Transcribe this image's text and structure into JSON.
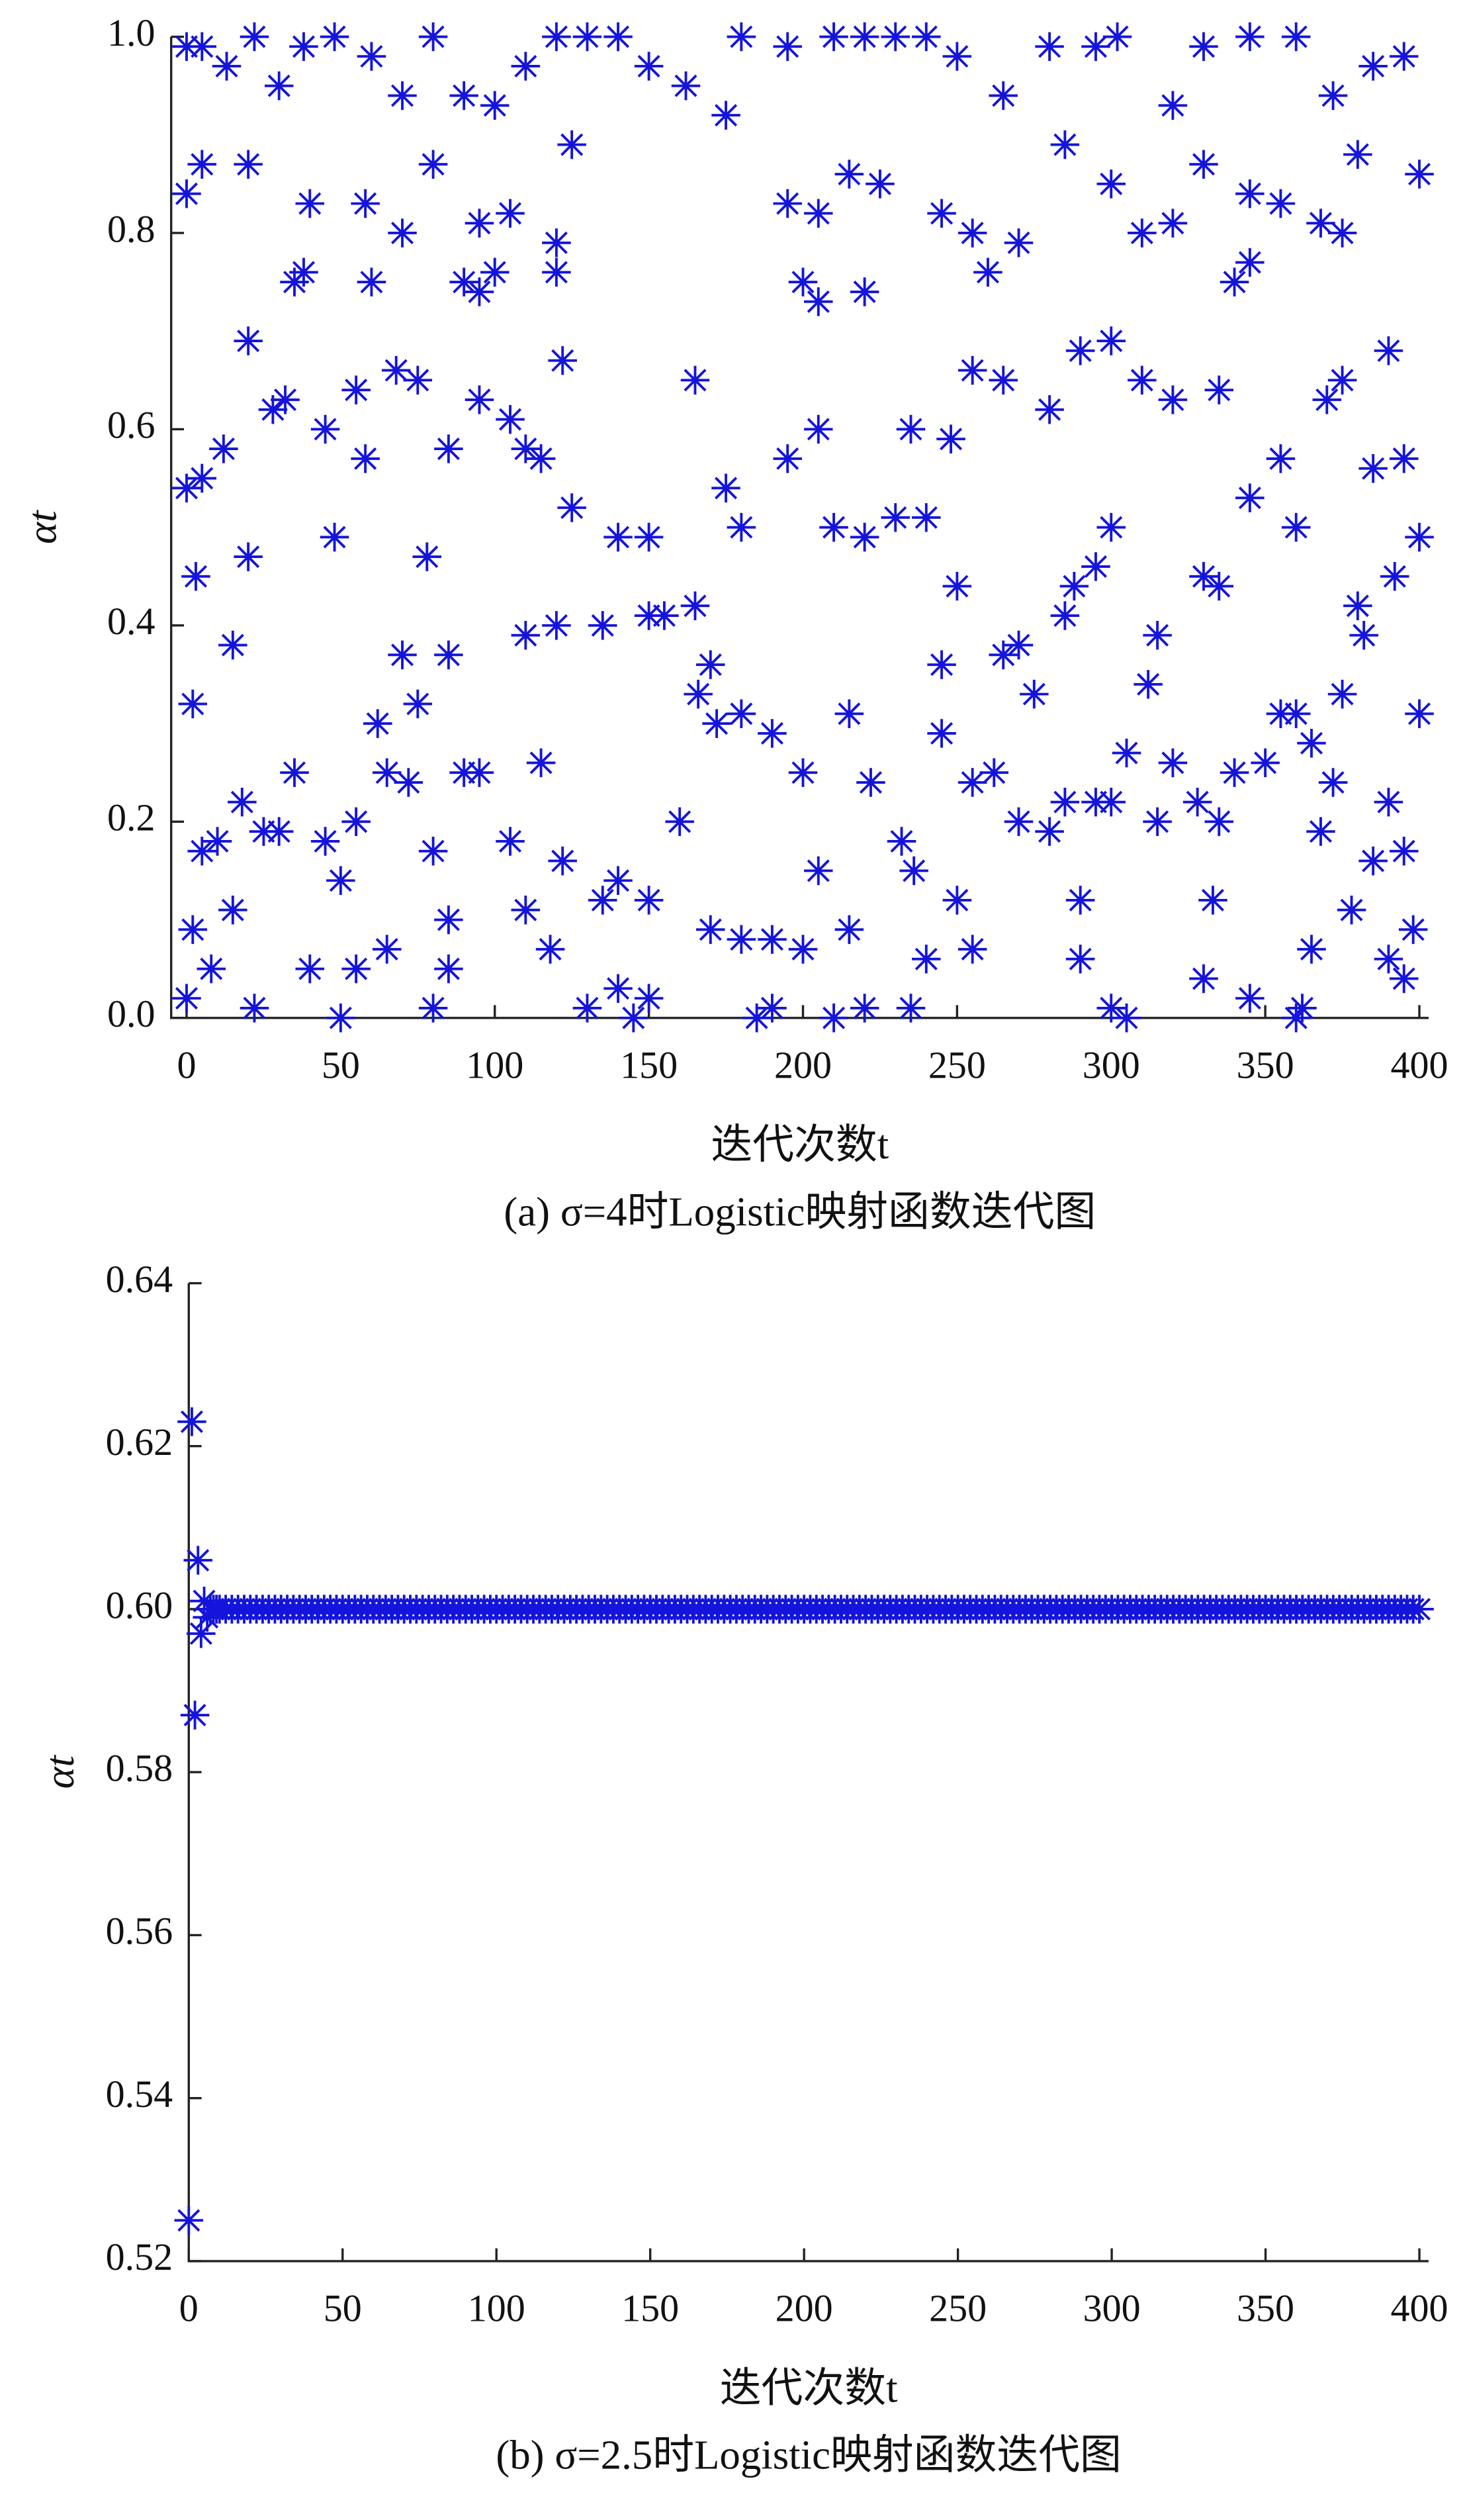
{
  "chart_data": [
    {
      "type": "scatter",
      "title": "(a) σ=4时Logistic映射函数迭代图",
      "x_label": "迭代次数t",
      "y_label": "αt",
      "color": "#1414dc",
      "marker": "asterisk",
      "xlim": [
        -5,
        403
      ],
      "xticks": [
        0,
        50,
        100,
        150,
        200,
        250,
        300,
        350,
        400
      ],
      "ylim": [
        0,
        1
      ],
      "yticks": [
        {
          "value": 0,
          "label": "0.0"
        },
        0.2,
        0.4,
        0.6,
        0.8,
        {
          "value": 1,
          "label": "1.0"
        }
      ],
      "x": [
        0,
        5,
        13,
        22,
        30,
        38,
        48,
        60,
        70,
        80,
        90,
        100,
        110,
        120,
        130,
        140,
        150,
        162,
        175,
        180,
        195,
        210,
        220,
        230,
        240,
        250,
        265,
        280,
        295,
        302,
        320,
        330,
        345,
        360,
        372,
        385,
        395,
        0,
        8,
        22,
        40,
        50,
        55,
        65,
        80,
        85,
        130,
        140,
        145,
        150,
        185,
        190,
        210,
        220,
        235,
        255,
        290,
        300,
        305,
        330,
        345,
        360,
        362,
        390,
        395,
        35,
        38,
        60,
        90,
        95,
        100,
        120,
        200,
        205,
        220,
        260,
        340,
        345,
        0,
        5,
        20,
        40,
        58,
        70,
        80,
        95,
        105,
        120,
        125,
        165,
        195,
        205,
        215,
        225,
        245,
        255,
        270,
        285,
        300,
        310,
        320,
        330,
        345,
        355,
        368,
        375,
        380,
        400,
        0,
        5,
        12,
        20,
        28,
        32,
        45,
        55,
        58,
        68,
        75,
        85,
        95,
        105,
        110,
        115,
        122,
        125,
        140,
        150,
        175,
        180,
        195,
        205,
        210,
        220,
        230,
        235,
        240,
        248,
        255,
        265,
        280,
        290,
        300,
        310,
        320,
        335,
        345,
        355,
        360,
        370,
        375,
        385,
        390,
        395,
        400,
        3,
        2,
        15,
        20,
        48,
        70,
        78,
        85,
        75,
        110,
        120,
        135,
        150,
        155,
        165,
        170,
        172,
        166,
        180,
        190,
        200,
        215,
        245,
        250,
        265,
        270,
        275,
        285,
        288,
        295,
        300,
        315,
        312,
        330,
        335,
        365,
        360,
        375,
        380,
        382,
        400,
        392,
        2,
        5,
        10,
        18,
        15,
        25,
        30,
        35,
        45,
        50,
        55,
        62,
        65,
        72,
        80,
        85,
        90,
        95,
        105,
        110,
        115,
        118,
        122,
        135,
        140,
        150,
        160,
        170,
        180,
        190,
        200,
        205,
        215,
        222,
        232,
        236,
        240,
        245,
        250,
        255,
        262,
        270,
        280,
        285,
        290,
        295,
        300,
        305,
        315,
        320,
        328,
        333,
        335,
        340,
        350,
        355,
        365,
        368,
        372,
        378,
        385,
        390,
        395,
        398
      ],
      "values": [
        0.99,
        0.99,
        0.97,
        1.0,
        0.95,
        0.99,
        1.0,
        0.98,
        0.94,
        1.0,
        0.94,
        0.93,
        0.97,
        1.0,
        1.0,
        1.0,
        0.97,
        0.95,
        0.92,
        1.0,
        0.99,
        1.0,
        1.0,
        1.0,
        1.0,
        0.98,
        0.94,
        0.99,
        0.99,
        1.0,
        0.93,
        0.99,
        1.0,
        1.0,
        0.94,
        0.97,
        0.98,
        0.02,
        0.05,
        0.01,
        0.05,
        0.0,
        0.05,
        0.07,
        0.01,
        0.05,
        0.01,
        0.03,
        0.0,
        0.02,
        0.0,
        0.01,
        0.0,
        0.01,
        0.01,
        0.07,
        0.06,
        0.01,
        0.0,
        0.04,
        0.02,
        0.0,
        0.01,
        0.06,
        0.04,
        0.75,
        0.76,
        0.75,
        0.75,
        0.74,
        0.76,
        0.76,
        0.75,
        0.73,
        0.74,
        0.76,
        0.75,
        0.77,
        0.84,
        0.87,
        0.87,
        0.83,
        0.83,
        0.8,
        0.87,
        0.81,
        0.82,
        0.79,
        0.89,
        0.65,
        0.83,
        0.82,
        0.86,
        0.85,
        0.82,
        0.8,
        0.79,
        0.89,
        0.85,
        0.8,
        0.81,
        0.87,
        0.84,
        0.83,
        0.81,
        0.8,
        0.88,
        0.86,
        0.54,
        0.55,
        0.58,
        0.69,
        0.62,
        0.63,
        0.6,
        0.64,
        0.57,
        0.66,
        0.65,
        0.58,
        0.63,
        0.61,
        0.58,
        0.57,
        0.67,
        0.52,
        0.49,
        0.49,
        0.54,
        0.5,
        0.57,
        0.6,
        0.5,
        0.49,
        0.51,
        0.6,
        0.51,
        0.59,
        0.66,
        0.65,
        0.62,
        0.68,
        0.69,
        0.65,
        0.63,
        0.64,
        0.53,
        0.57,
        0.5,
        0.63,
        0.65,
        0.56,
        0.68,
        0.57,
        0.49,
        0.45,
        0.32,
        0.38,
        0.47,
        0.49,
        0.37,
        0.47,
        0.37,
        0.32,
        0.39,
        0.4,
        0.4,
        0.41,
        0.41,
        0.42,
        0.36,
        0.3,
        0.33,
        0.31,
        0.29,
        0.25,
        0.31,
        0.36,
        0.44,
        0.37,
        0.38,
        0.33,
        0.41,
        0.44,
        0.46,
        0.5,
        0.39,
        0.34,
        0.45,
        0.44,
        0.28,
        0.31,
        0.33,
        0.42,
        0.39,
        0.31,
        0.45,
        0.09,
        0.17,
        0.18,
        0.22,
        0.11,
        0.19,
        0.19,
        0.25,
        0.18,
        0.14,
        0.2,
        0.3,
        0.25,
        0.24,
        0.17,
        0.1,
        0.25,
        0.25,
        0.18,
        0.11,
        0.26,
        0.07,
        0.16,
        0.12,
        0.14,
        0.12,
        0.2,
        0.09,
        0.08,
        0.08,
        0.07,
        0.15,
        0.09,
        0.24,
        0.18,
        0.15,
        0.06,
        0.29,
        0.12,
        0.24,
        0.25,
        0.2,
        0.19,
        0.22,
        0.12,
        0.22,
        0.22,
        0.27,
        0.2,
        0.26,
        0.22,
        0.12,
        0.2,
        0.25,
        0.26,
        0.31,
        0.07,
        0.19,
        0.24,
        0.11,
        0.16,
        0.22,
        0.17,
        0.09
      ]
    },
    {
      "type": "scatter",
      "title": "(b)  σ=2.5时Logistic映射函数迭代图",
      "x_label": "迭代次数t",
      "y_label": "αt",
      "color": "#1414dc",
      "marker": "asterisk",
      "xlim": [
        0,
        403
      ],
      "xticks": [
        0,
        50,
        100,
        150,
        200,
        250,
        300,
        350,
        400
      ],
      "ylim": [
        0.52,
        0.64
      ],
      "yticks": [
        0.52,
        0.54,
        0.56,
        0.58,
        {
          "value": 0.6,
          "label": "0.60"
        },
        0.62,
        0.64
      ],
      "x": [
        0,
        1,
        2,
        3,
        4,
        5,
        6,
        7,
        8,
        9,
        10,
        12,
        14,
        16,
        18,
        20,
        22,
        24,
        26,
        28,
        30,
        32,
        34,
        36,
        38,
        40,
        42,
        44,
        46,
        48,
        50,
        52,
        54,
        56,
        58,
        60,
        62,
        64,
        66,
        68,
        70,
        72,
        74,
        76,
        78,
        80,
        82,
        84,
        86,
        88,
        90,
        92,
        94,
        96,
        98,
        100,
        102,
        104,
        106,
        108,
        110,
        112,
        114,
        116,
        118,
        120,
        122,
        124,
        126,
        128,
        130,
        132,
        134,
        136,
        138,
        140,
        142,
        144,
        146,
        148,
        150,
        152,
        154,
        156,
        158,
        160,
        162,
        164,
        166,
        168,
        170,
        172,
        174,
        176,
        178,
        180,
        182,
        184,
        186,
        188,
        190,
        192,
        194,
        196,
        198,
        200,
        202,
        204,
        206,
        208,
        210,
        212,
        214,
        216,
        218,
        220,
        222,
        224,
        226,
        228,
        230,
        232,
        234,
        236,
        238,
        240,
        242,
        244,
        246,
        248,
        250,
        252,
        254,
        256,
        258,
        260,
        262,
        264,
        266,
        268,
        270,
        272,
        274,
        276,
        278,
        280,
        282,
        284,
        286,
        288,
        290,
        292,
        294,
        296,
        298,
        300,
        302,
        304,
        306,
        308,
        310,
        312,
        314,
        316,
        318,
        320,
        322,
        324,
        326,
        328,
        330,
        332,
        334,
        336,
        338,
        340,
        342,
        344,
        346,
        348,
        350,
        352,
        354,
        356,
        358,
        360,
        362,
        364,
        366,
        368,
        370,
        372,
        374,
        376,
        378,
        380,
        382,
        384,
        386,
        388,
        390,
        392,
        394,
        396,
        398,
        400
      ],
      "values": [
        0.525,
        0.623,
        0.587,
        0.606,
        0.597,
        0.601,
        0.599,
        0.6,
        0.6,
        0.6,
        0.6,
        0.6,
        0.6,
        0.6,
        0.6,
        0.6,
        0.6,
        0.6,
        0.6,
        0.6,
        0.6,
        0.6,
        0.6,
        0.6,
        0.6,
        0.6,
        0.6,
        0.6,
        0.6,
        0.6,
        0.6,
        0.6,
        0.6,
        0.6,
        0.6,
        0.6,
        0.6,
        0.6,
        0.6,
        0.6,
        0.6,
        0.6,
        0.6,
        0.6,
        0.6,
        0.6,
        0.6,
        0.6,
        0.6,
        0.6,
        0.6,
        0.6,
        0.6,
        0.6,
        0.6,
        0.6,
        0.6,
        0.6,
        0.6,
        0.6,
        0.6,
        0.6,
        0.6,
        0.6,
        0.6,
        0.6,
        0.6,
        0.6,
        0.6,
        0.6,
        0.6,
        0.6,
        0.6,
        0.6,
        0.6,
        0.6,
        0.6,
        0.6,
        0.6,
        0.6,
        0.6,
        0.6,
        0.6,
        0.6,
        0.6,
        0.6,
        0.6,
        0.6,
        0.6,
        0.6,
        0.6,
        0.6,
        0.6,
        0.6,
        0.6,
        0.6,
        0.6,
        0.6,
        0.6,
        0.6,
        0.6,
        0.6,
        0.6,
        0.6,
        0.6,
        0.6,
        0.6,
        0.6,
        0.6,
        0.6,
        0.6,
        0.6,
        0.6,
        0.6,
        0.6,
        0.6,
        0.6,
        0.6,
        0.6,
        0.6,
        0.6,
        0.6,
        0.6,
        0.6,
        0.6,
        0.6,
        0.6,
        0.6,
        0.6,
        0.6,
        0.6,
        0.6,
        0.6,
        0.6,
        0.6,
        0.6,
        0.6,
        0.6,
        0.6,
        0.6,
        0.6,
        0.6,
        0.6,
        0.6,
        0.6,
        0.6,
        0.6,
        0.6,
        0.6,
        0.6,
        0.6,
        0.6,
        0.6,
        0.6,
        0.6,
        0.6,
        0.6,
        0.6,
        0.6,
        0.6,
        0.6,
        0.6,
        0.6,
        0.6,
        0.6,
        0.6,
        0.6,
        0.6,
        0.6,
        0.6,
        0.6,
        0.6,
        0.6,
        0.6,
        0.6,
        0.6,
        0.6,
        0.6,
        0.6,
        0.6,
        0.6,
        0.6,
        0.6,
        0.6,
        0.6,
        0.6,
        0.6,
        0.6,
        0.6,
        0.6,
        0.6,
        0.6,
        0.6,
        0.6,
        0.6,
        0.6,
        0.6,
        0.6,
        0.6,
        0.6,
        0.6,
        0.6,
        0.6,
        0.6,
        0.6,
        0.6
      ]
    }
  ]
}
